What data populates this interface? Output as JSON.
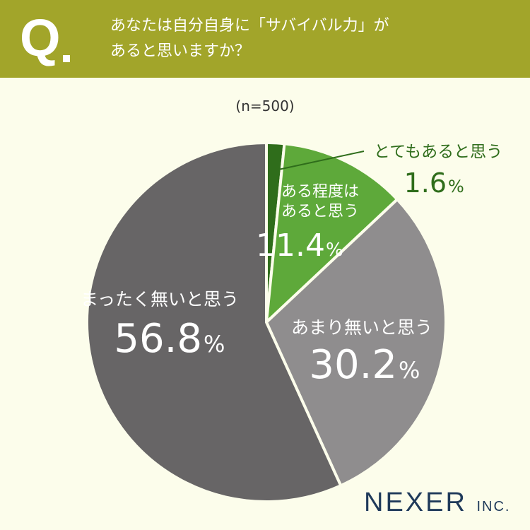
{
  "header": {
    "q_mark": "Q",
    "question_line1": "あなたは自分自身に「サバイバル力」が",
    "question_line2": "あると思いますか？"
  },
  "sample": "(n=500)",
  "logo": {
    "name": "NEXER",
    "suffix": "INC."
  },
  "colors": {
    "header": "#a2a52a",
    "background": "#fcfdeb"
  },
  "chart_data": {
    "type": "pie",
    "unit": "%",
    "slices": [
      {
        "label": "とてもあると思う",
        "value": 1.6,
        "display": "1.6",
        "color": "#2f6d1b"
      },
      {
        "label_line1": "ある程度は",
        "label_line2": "あると思う",
        "label": "ある程度はあると思う",
        "value": 11.4,
        "display": "11.4",
        "color": "#5ea93a"
      },
      {
        "label": "あまり無いと思う",
        "value": 30.2,
        "display": "30.2",
        "color": "#8f8d8e"
      },
      {
        "label": "まったく無いと思う",
        "value": 56.8,
        "display": "56.8",
        "color": "#676566"
      }
    ]
  }
}
